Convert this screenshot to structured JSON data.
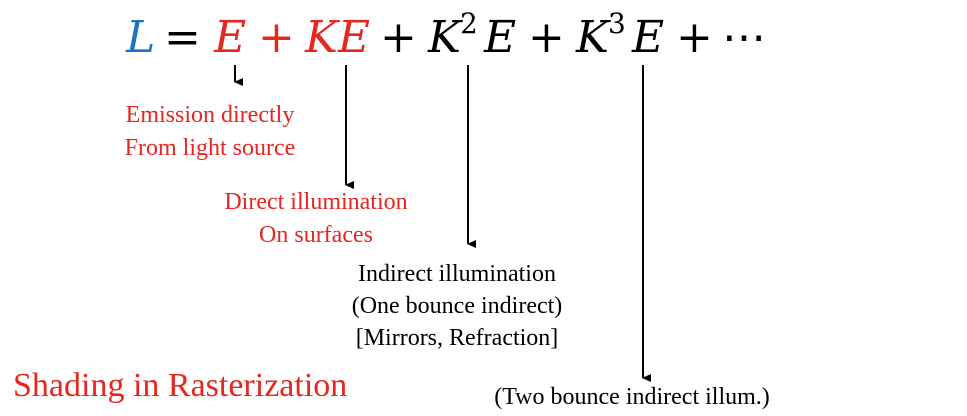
{
  "equation": {
    "L": "L",
    "eq": "=",
    "E1": "E",
    "plus1": "+",
    "KE": "KE",
    "plus2": "+",
    "K2": "K",
    "exp2": "2",
    "E3": "E",
    "plus3": "+",
    "K3": "K",
    "exp3": "3",
    "E4": "E",
    "plus4": "+",
    "dots": "⋯"
  },
  "annotations": {
    "emission": [
      "Emission directly",
      "From light source"
    ],
    "direct": [
      "Direct illumination",
      "On surfaces"
    ],
    "indirect": [
      "Indirect illumination",
      "(One bounce indirect)",
      "[Mirrors, Refraction]"
    ],
    "two_bounce": [
      "(Two bounce indirect illum.)"
    ]
  },
  "footer": {
    "title": "Shading in Rasterization"
  },
  "colors": {
    "red": "#e8251f",
    "blue": "#1b74c4",
    "black": "#000000"
  }
}
